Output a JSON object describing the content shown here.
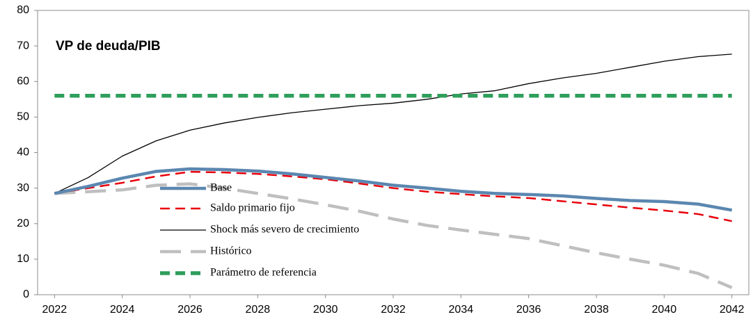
{
  "chart_data": {
    "type": "line",
    "title": "VP de deuda/PIB",
    "x": [
      2022,
      2023,
      2024,
      2025,
      2026,
      2027,
      2028,
      2029,
      2030,
      2031,
      2032,
      2033,
      2034,
      2035,
      2036,
      2037,
      2038,
      2039,
      2040,
      2041,
      2042
    ],
    "xlim": [
      2021.5,
      2042.5
    ],
    "xticks": [
      2022,
      2024,
      2026,
      2028,
      2030,
      2032,
      2034,
      2036,
      2038,
      2040,
      2042
    ],
    "ylim": [
      0,
      80
    ],
    "yticks": [
      0,
      10,
      20,
      30,
      40,
      50,
      60,
      70,
      80
    ],
    "series": [
      {
        "name": "Base",
        "color": "#5b87b0",
        "style": "solid-thick",
        "values": [
          28.5,
          30.5,
          32.8,
          34.7,
          35.4,
          35.2,
          34.8,
          34.0,
          33.0,
          32.0,
          30.8,
          30.0,
          29.1,
          28.5,
          28.2,
          27.8,
          27.1,
          26.5,
          26.2,
          25.5,
          23.8
        ]
      },
      {
        "name": "Saldo primario fijo",
        "color": "#e8000b",
        "style": "dashed",
        "values": [
          28.5,
          30.0,
          31.5,
          33.3,
          34.6,
          34.4,
          34.0,
          33.3,
          32.5,
          31.3,
          30.0,
          29.0,
          28.3,
          27.7,
          27.2,
          26.3,
          25.4,
          24.5,
          23.7,
          22.7,
          20.7
        ]
      },
      {
        "name": "Shock más severo de crecimiento",
        "color": "#000000",
        "style": "solid-thin",
        "values": [
          28.5,
          33.0,
          39.0,
          43.3,
          46.3,
          48.3,
          49.9,
          51.2,
          52.2,
          53.2,
          53.9,
          55.0,
          56.5,
          57.4,
          59.4,
          61.0,
          62.3,
          64.0,
          65.7,
          67.0,
          67.7
        ]
      },
      {
        "name": "Histórico",
        "color": "#bfbfbf",
        "style": "long-dashed",
        "values": [
          28.5,
          29.0,
          29.5,
          30.8,
          31.2,
          30.0,
          28.5,
          27.0,
          25.3,
          23.5,
          21.3,
          19.5,
          18.2,
          17.0,
          15.8,
          13.8,
          11.8,
          10.0,
          8.3,
          6.0,
          2.0
        ]
      },
      {
        "name": "Parámetro de referencia",
        "color": "#2e9e5b",
        "style": "dashed-thick",
        "values": [
          56,
          56,
          56,
          56,
          56,
          56,
          56,
          56,
          56,
          56,
          56,
          56,
          56,
          56,
          56,
          56,
          56,
          56,
          56,
          56,
          56
        ]
      }
    ]
  }
}
